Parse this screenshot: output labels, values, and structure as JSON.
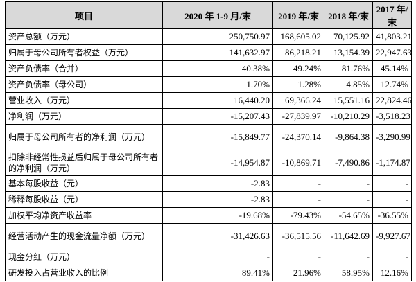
{
  "table": {
    "headers": [
      "项目",
      "2020 年 1-9 月/末",
      "2019 年/末",
      "2018 年/末",
      "2017 年/末"
    ],
    "rows": [
      {
        "label": "资产总额（万元）",
        "values": [
          "250,750.97",
          "168,605.02",
          "70,125.92",
          "41,803.21"
        ]
      },
      {
        "label": "归属于母公司所有者权益（万元）",
        "values": [
          "141,632.97",
          "86,218.21",
          "13,154.39",
          "22,947.63"
        ]
      },
      {
        "label": "资产负债率（合并）",
        "values": [
          "40.38%",
          "49.24%",
          "81.76%",
          "45.14%"
        ]
      },
      {
        "label": "资产负债率（母公司）",
        "values": [
          "1.70%",
          "1.28%",
          "4.85%",
          "12.74%"
        ]
      },
      {
        "label": "营业收入（万元）",
        "values": [
          "16,440.20",
          "69,366.24",
          "15,551.16",
          "22,824.46"
        ]
      },
      {
        "label": "净利润（万元）",
        "values": [
          "-15,207.43",
          "-27,839.97",
          "-10,210.29",
          "-3,518.23"
        ]
      },
      {
        "label": "归属于母公司所有者的净利润（万元）",
        "values": [
          "-15,849.77",
          "-24,370.14",
          "-9,864.38",
          "-3,290.99"
        ]
      },
      {
        "label": "扣除非经常性损益后归属于母公司所有者的净利润（万元）",
        "values": [
          "-14,954.87",
          "-10,869.71",
          "-7,490.86",
          "-1,174.87"
        ]
      },
      {
        "label": "基本每股收益（元）",
        "values": [
          "-2.83",
          "-",
          "-",
          "-"
        ]
      },
      {
        "label": "稀释每股收益（元）",
        "values": [
          "-2.83",
          "-",
          "-",
          "-"
        ]
      },
      {
        "label": "加权平均净资产收益率",
        "values": [
          "-19.68%",
          "-79.43%",
          "-54.65%",
          "-36.55%"
        ]
      },
      {
        "label": "经营活动产生的现金流量净额（万元）",
        "values": [
          "-31,426.63",
          "-36,515.56",
          "-11,642.69",
          "-9,927.67"
        ]
      },
      {
        "label": "现金分红（万元）",
        "values": [
          "-",
          "-",
          "-",
          "-"
        ]
      },
      {
        "label": "研发投入占营业收入的比例",
        "values": [
          "89.41%",
          "21.96%",
          "58.95%",
          "12.16%"
        ]
      }
    ]
  }
}
